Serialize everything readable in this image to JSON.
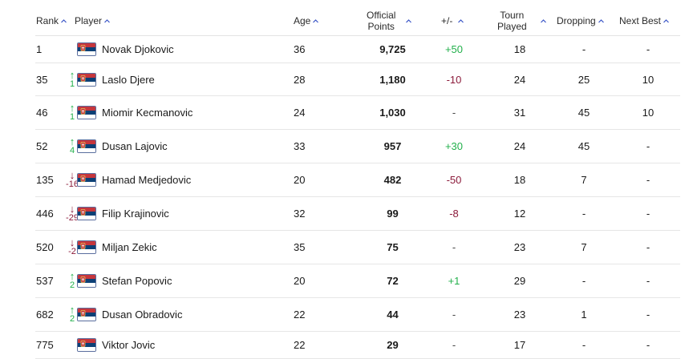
{
  "columns": {
    "rank": "Rank",
    "player": "Player",
    "age": "Age",
    "points_line1": "Official",
    "points_line2": "Points",
    "plus_minus": "+/-",
    "tourn_line1": "Tourn",
    "tourn_line2": "Played",
    "dropping": "Dropping",
    "next_best": "Next Best"
  },
  "icons": {
    "sort": "chevron-up-icon",
    "flag": "serbia-flag-icon",
    "up": "arrow-up-icon",
    "down": "arrow-down-icon"
  },
  "colors": {
    "up": "#22b04b",
    "down": "#8b1a3a",
    "flag_red": "#c6363c",
    "flag_blue": "#0c4076",
    "flag_white": "#ffffff"
  },
  "rows": [
    {
      "rank": "1",
      "move_dir": "",
      "move": "",
      "player": "Novak Djokovic",
      "age": "36",
      "points": "9,725",
      "plus_minus": "+50",
      "pm_type": "pos",
      "tourn": "18",
      "dropping": "-",
      "next_best": "-"
    },
    {
      "rank": "35",
      "move_dir": "up",
      "move": "1",
      "player": "Laslo Djere",
      "age": "28",
      "points": "1,180",
      "plus_minus": "-10",
      "pm_type": "neg",
      "tourn": "24",
      "dropping": "25",
      "next_best": "10"
    },
    {
      "rank": "46",
      "move_dir": "up",
      "move": "1",
      "player": "Miomir Kecmanovic",
      "age": "24",
      "points": "1,030",
      "plus_minus": "-",
      "pm_type": "neu",
      "tourn": "31",
      "dropping": "45",
      "next_best": "10"
    },
    {
      "rank": "52",
      "move_dir": "up",
      "move": "4",
      "player": "Dusan Lajovic",
      "age": "33",
      "points": "957",
      "plus_minus": "+30",
      "pm_type": "pos",
      "tourn": "24",
      "dropping": "45",
      "next_best": "-"
    },
    {
      "rank": "135",
      "move_dir": "down",
      "move": "-16",
      "player": "Hamad Medjedovic",
      "age": "20",
      "points": "482",
      "plus_minus": "-50",
      "pm_type": "neg",
      "tourn": "18",
      "dropping": "7",
      "next_best": "-"
    },
    {
      "rank": "446",
      "move_dir": "down",
      "move": "-29",
      "player": "Filip Krajinovic",
      "age": "32",
      "points": "99",
      "plus_minus": "-8",
      "pm_type": "neg",
      "tourn": "12",
      "dropping": "-",
      "next_best": "-"
    },
    {
      "rank": "520",
      "move_dir": "down",
      "move": "-2",
      "player": "Miljan Zekic",
      "age": "35",
      "points": "75",
      "plus_minus": "-",
      "pm_type": "neu",
      "tourn": "23",
      "dropping": "7",
      "next_best": "-"
    },
    {
      "rank": "537",
      "move_dir": "up",
      "move": "2",
      "player": "Stefan Popovic",
      "age": "20",
      "points": "72",
      "plus_minus": "+1",
      "pm_type": "pos",
      "tourn": "29",
      "dropping": "-",
      "next_best": "-"
    },
    {
      "rank": "682",
      "move_dir": "up",
      "move": "2",
      "player": "Dusan Obradovic",
      "age": "22",
      "points": "44",
      "plus_minus": "-",
      "pm_type": "neu",
      "tourn": "23",
      "dropping": "1",
      "next_best": "-"
    },
    {
      "rank": "775",
      "move_dir": "",
      "move": "",
      "player": "Viktor Jovic",
      "age": "22",
      "points": "29",
      "plus_minus": "-",
      "pm_type": "neu",
      "tourn": "17",
      "dropping": "-",
      "next_best": "-"
    }
  ]
}
